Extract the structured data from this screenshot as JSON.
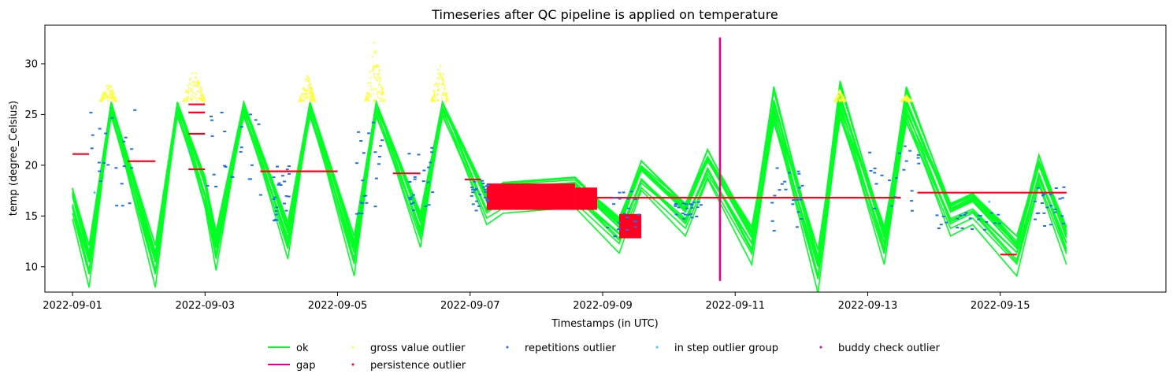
{
  "chart_data": {
    "type": "line",
    "title": "Timeseries after QC pipeline is applied on temperature",
    "xlabel": "Timestamps (in UTC)",
    "ylabel": "temp (degree_Celsius)",
    "x_range": [
      "2022-08-31T14:00",
      "2022-09-17T12:00"
    ],
    "ylim": [
      7.5,
      33.8
    ],
    "x_ticks": [
      "2022-09-01",
      "2022-09-03",
      "2022-09-05",
      "2022-09-07",
      "2022-09-09",
      "2022-09-11",
      "2022-09-13",
      "2022-09-15"
    ],
    "y_ticks": [
      10,
      15,
      20,
      25,
      30
    ],
    "grid": false,
    "legend": {
      "position": "bottom-center",
      "ncol": 5
    },
    "series": [
      {
        "name": "ok",
        "kind": "line",
        "color": "#00ff22",
        "note": "multi-station diurnal temperature curves",
        "x": [
          "2022-09-01T00:00",
          "2022-09-01T06:00",
          "2022-09-01T14:00",
          "2022-09-02T06:00",
          "2022-09-02T14:00",
          "2022-09-03T00:00",
          "2022-09-03T04:00",
          "2022-09-03T14:00",
          "2022-09-04T06:00",
          "2022-09-04T14:00",
          "2022-09-05T06:00",
          "2022-09-05T14:00",
          "2022-09-06T06:00",
          "2022-09-06T14:00",
          "2022-09-07T06:00",
          "2022-09-07T12:00",
          "2022-09-08T14:00",
          "2022-09-09T06:00",
          "2022-09-09T14:00",
          "2022-09-10T06:00",
          "2022-09-10T14:00",
          "2022-09-11T06:00",
          "2022-09-11T14:00",
          "2022-09-12T06:00",
          "2022-09-12T14:00",
          "2022-09-13T06:00",
          "2022-09-13T14:00",
          "2022-09-14T06:00",
          "2022-09-14T14:00",
          "2022-09-15T06:00",
          "2022-09-15T14:00",
          "2022-09-16T00:00"
        ],
        "y": [
          16.5,
          10.5,
          26.2,
          10.5,
          26.2,
          17.5,
          12.0,
          26.2,
          13.0,
          26.2,
          11.5,
          26.2,
          14.0,
          26.2,
          16.0,
          17.0,
          17.5,
          13.5,
          19.0,
          15.0,
          20.0,
          12.5,
          25.5,
          10.0,
          26.0,
          12.5,
          25.5,
          15.0,
          16.0,
          11.5,
          19.5,
          12.5
        ]
      },
      {
        "name": "gap",
        "kind": "line",
        "color": "#e6008c",
        "segments": [
          {
            "x": "2022-09-10T18:30",
            "y": [
              8.6,
              32.6
            ]
          }
        ]
      },
      {
        "name": "gross value outlier",
        "kind": "scatter",
        "color": "#ffff33",
        "clusters": [
          {
            "x": [
              "2022-09-01T10:00",
              "2022-09-01T16:00"
            ],
            "y": [
              26.3,
              28.6
            ]
          },
          {
            "x": [
              "2022-09-02T16:00",
              "2022-09-03T00:00"
            ],
            "y": [
              26.3,
              30.0
            ]
          },
          {
            "x": [
              "2022-09-04T10:00",
              "2022-09-04T16:00"
            ],
            "y": [
              26.3,
              29.2
            ]
          },
          {
            "x": [
              "2022-09-05T10:00",
              "2022-09-05T17:00"
            ],
            "y": [
              26.3,
              32.6
            ]
          },
          {
            "x": [
              "2022-09-06T10:00",
              "2022-09-06T16:00"
            ],
            "y": [
              26.3,
              30.8
            ]
          },
          {
            "x": [
              "2022-09-12T12:00",
              "2022-09-12T16:00"
            ],
            "y": [
              26.3,
              27.5
            ]
          },
          {
            "x": [
              "2022-09-13T12:00",
              "2022-09-13T16:00"
            ],
            "y": [
              26.3,
              26.9
            ]
          }
        ]
      },
      {
        "name": "persistence outlier",
        "kind": "scatter",
        "color": "#ff0022",
        "hlines": [
          {
            "x": [
              "2022-09-01T00:00",
              "2022-09-01T06:00"
            ],
            "y": 21.1
          },
          {
            "x": [
              "2022-09-01T20:00",
              "2022-09-02T06:00"
            ],
            "y": 20.4
          },
          {
            "x": [
              "2022-09-02T18:00",
              "2022-09-03T00:00"
            ],
            "y": 26.0
          },
          {
            "x": [
              "2022-09-02T18:00",
              "2022-09-03T00:00"
            ],
            "y": 25.2
          },
          {
            "x": [
              "2022-09-02T18:00",
              "2022-09-03T00:00"
            ],
            "y": 23.1
          },
          {
            "x": [
              "2022-09-02T18:00",
              "2022-09-03T00:00"
            ],
            "y": 19.6
          },
          {
            "x": [
              "2022-09-03T20:00",
              "2022-09-05T00:00"
            ],
            "y": 19.4
          },
          {
            "x": [
              "2022-09-05T20:00",
              "2022-09-06T06:00"
            ],
            "y": 19.2
          },
          {
            "x": [
              "2022-09-06T22:00",
              "2022-09-07T04:00"
            ],
            "y": 18.6
          },
          {
            "x": [
              "2022-09-07T06:00",
              "2022-09-10T00:00"
            ],
            "y": 16.8
          },
          {
            "x": [
              "2022-09-10T00:00",
              "2022-09-13T12:00"
            ],
            "y": 16.8
          },
          {
            "x": [
              "2022-09-13T18:00",
              "2022-09-16T00:00"
            ],
            "y": 17.3
          },
          {
            "x": [
              "2022-09-15T00:00",
              "2022-09-15T06:00"
            ],
            "y": 11.2
          }
        ],
        "blocks": [
          {
            "x": [
              "2022-09-07T06:00",
              "2022-09-08T14:00"
            ],
            "y": [
              15.6,
              18.2
            ]
          },
          {
            "x": [
              "2022-09-08T14:00",
              "2022-09-08T22:00"
            ],
            "y": [
              15.6,
              17.8
            ]
          },
          {
            "x": [
              "2022-09-09T06:00",
              "2022-09-09T14:00"
            ],
            "y": [
              12.8,
              15.2
            ]
          }
        ]
      },
      {
        "name": "repetitions outlier",
        "kind": "scatter",
        "color": "#1f6fe6",
        "clusters": [
          {
            "x": [
              "2022-09-01T06:00",
              "2022-09-01T22:00"
            ],
            "y": [
              16.0,
              25.5
            ]
          },
          {
            "x": [
              "2022-09-03T00:00",
              "2022-09-03T20:00"
            ],
            "y": [
              16.0,
              25.5
            ]
          },
          {
            "x": [
              "2022-09-04T00:00",
              "2022-09-04T06:00"
            ],
            "y": [
              14.5,
              20.0
            ]
          },
          {
            "x": [
              "2022-09-05T06:00",
              "2022-09-05T18:00"
            ],
            "y": [
              14.0,
              25.0
            ]
          },
          {
            "x": [
              "2022-09-06T00:00",
              "2022-09-06T10:00"
            ],
            "y": [
              15.0,
              22.0
            ]
          },
          {
            "x": [
              "2022-09-07T00:00",
              "2022-09-07T06:00"
            ],
            "y": [
              15.5,
              18.5
            ]
          },
          {
            "x": [
              "2022-09-09T00:00",
              "2022-09-09T14:00"
            ],
            "y": [
              12.8,
              17.5
            ]
          },
          {
            "x": [
              "2022-09-10T00:00",
              "2022-09-10T12:00"
            ],
            "y": [
              14.5,
              16.5
            ]
          },
          {
            "x": [
              "2022-09-11T12:00",
              "2022-09-12T00:00"
            ],
            "y": [
              13.0,
              20.0
            ]
          },
          {
            "x": [
              "2022-09-13T00:00",
              "2022-09-13T18:00"
            ],
            "y": [
              15.5,
              22.0
            ]
          },
          {
            "x": [
              "2022-09-14T00:00",
              "2022-09-15T00:00"
            ],
            "y": [
              13.5,
              15.5
            ]
          },
          {
            "x": [
              "2022-09-15T12:00",
              "2022-09-16T00:00"
            ],
            "y": [
              14.0,
              18.0
            ]
          }
        ]
      },
      {
        "name": "in step outlier group",
        "kind": "scatter",
        "color": "#33ccff",
        "points": [
          {
            "x": "2022-09-02T18:00",
            "y": 21.6
          },
          {
            "x": "2022-09-01T08:00",
            "y": 17.3
          },
          {
            "x": "2022-09-14T20:00",
            "y": 16.4
          }
        ]
      },
      {
        "name": "buddy check outlier",
        "kind": "scatter",
        "color": "#cc0099",
        "points": []
      }
    ]
  }
}
